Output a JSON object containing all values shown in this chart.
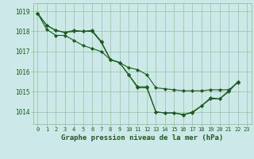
{
  "title": "Graphe pression niveau de la mer (hPa)",
  "bg_color": "#cce8e8",
  "grid_color": "#88bb88",
  "line_color": "#1a5c1a",
  "marker_color": "#1a5c1a",
  "xlim": [
    -0.5,
    23.5
  ],
  "ylim": [
    1013.4,
    1019.4
  ],
  "yticks": [
    1014,
    1015,
    1016,
    1017,
    1018,
    1019
  ],
  "xticks": [
    0,
    1,
    2,
    3,
    4,
    5,
    6,
    7,
    8,
    9,
    10,
    11,
    12,
    13,
    14,
    15,
    16,
    17,
    18,
    19,
    20,
    21,
    22,
    23
  ],
  "series": [
    [
      1018.9,
      1018.3,
      1018.05,
      1017.95,
      1018.05,
      1018.0,
      1018.05,
      1017.5,
      1016.6,
      1016.45,
      1015.85,
      1015.25,
      1015.25,
      1014.0,
      1013.95,
      1013.95,
      1013.88,
      1013.95,
      1014.3,
      1014.7,
      1014.65,
      1015.05,
      1015.5,
      null
    ],
    [
      1018.9,
      1018.3,
      1018.05,
      1017.95,
      1018.0,
      1018.0,
      1018.0,
      1017.45,
      1016.6,
      1016.45,
      1015.85,
      1015.2,
      1015.2,
      1014.0,
      1013.95,
      1013.95,
      1013.85,
      1014.0,
      1014.3,
      1014.65,
      1014.65,
      1015.0,
      1015.5,
      null
    ],
    [
      1018.9,
      1018.1,
      1017.8,
      1017.8,
      1017.55,
      1017.3,
      1017.15,
      1017.0,
      1016.6,
      1016.45,
      1016.2,
      1016.1,
      1015.85,
      1015.2,
      1015.15,
      1015.1,
      1015.05,
      1015.05,
      1015.05,
      1015.1,
      1015.1,
      1015.1,
      1015.45,
      null
    ]
  ]
}
